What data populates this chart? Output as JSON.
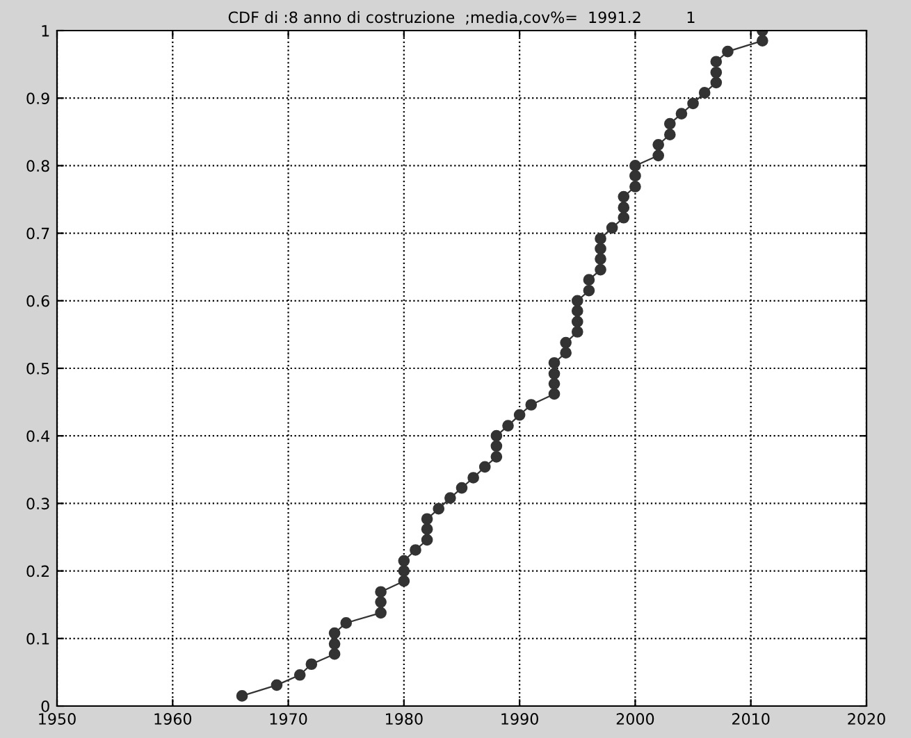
{
  "chart_data": {
    "type": "line",
    "title": "CDF di :8 anno di costruzione  ;media,cov%=  1991.2         1",
    "x": [
      1966,
      1969,
      1971,
      1972,
      1974,
      1974,
      1974,
      1975,
      1978,
      1978,
      1978,
      1980,
      1980,
      1980,
      1981,
      1982,
      1982,
      1982,
      1983,
      1984,
      1985,
      1986,
      1987,
      1988,
      1988,
      1988,
      1989,
      1990,
      1991,
      1993,
      1993,
      1993,
      1993,
      1994,
      1994,
      1995,
      1995,
      1995,
      1995,
      1996,
      1996,
      1997,
      1997,
      1997,
      1997,
      1998,
      1999,
      1999,
      1999,
      2000,
      2000,
      2000,
      2002,
      2002,
      2003,
      2003,
      2004,
      2005,
      2006,
      2007,
      2007,
      2007,
      2008,
      2011,
      2011
    ],
    "series": [
      {
        "color": "#333333",
        "values": [
          0.015,
          0.031,
          0.046,
          0.062,
          0.077,
          0.092,
          0.108,
          0.123,
          0.138,
          0.154,
          0.169,
          0.185,
          0.2,
          0.215,
          0.231,
          0.246,
          0.262,
          0.277,
          0.292,
          0.308,
          0.323,
          0.338,
          0.354,
          0.369,
          0.385,
          0.4,
          0.415,
          0.431,
          0.446,
          0.462,
          0.477,
          0.492,
          0.508,
          0.523,
          0.538,
          0.554,
          0.569,
          0.585,
          0.6,
          0.615,
          0.631,
          0.646,
          0.662,
          0.677,
          0.692,
          0.708,
          0.723,
          0.738,
          0.754,
          0.769,
          0.785,
          0.8,
          0.815,
          0.831,
          0.846,
          0.862,
          0.877,
          0.892,
          0.908,
          0.923,
          0.938,
          0.954,
          0.969,
          0.985,
          1.0
        ]
      }
    ],
    "xlim": [
      1950,
      2020
    ],
    "xticks": [
      1950,
      1960,
      1970,
      1980,
      1990,
      2000,
      2010,
      2020
    ],
    "ylim": [
      0,
      1
    ],
    "yticks": [
      0,
      0.1,
      0.2,
      0.3,
      0.4,
      0.5,
      0.6,
      0.7,
      0.8,
      0.9,
      1
    ],
    "grid": true,
    "marker": "circle",
    "line_style": "solid",
    "legend": false
  }
}
